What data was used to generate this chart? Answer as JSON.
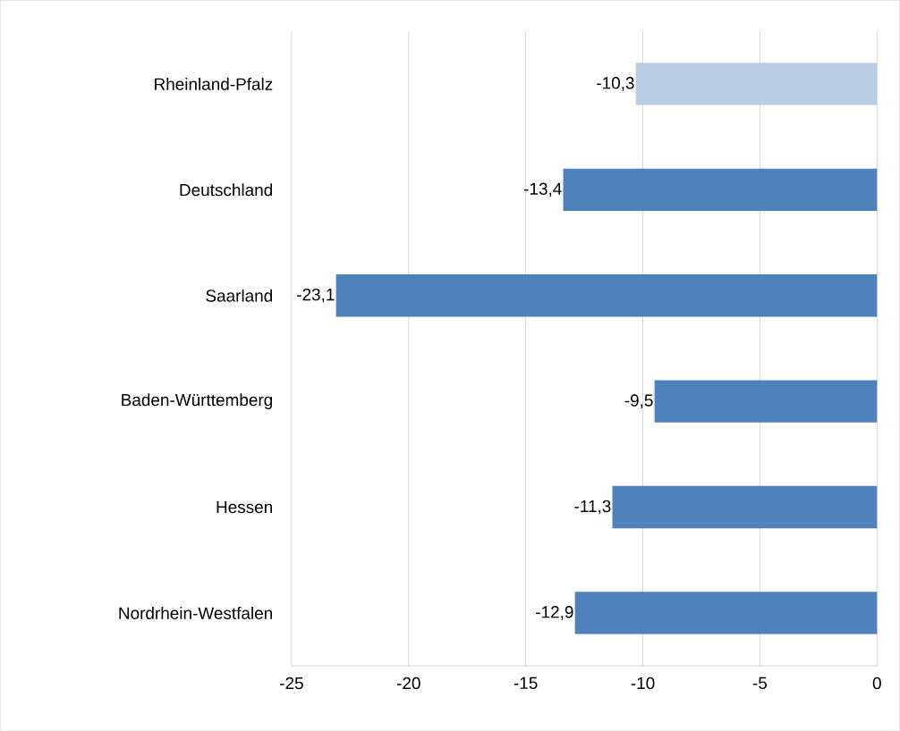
{
  "chart_data": {
    "type": "bar",
    "orientation": "horizontal",
    "categories": [
      "Rheinland-Pfalz",
      "Deutschland",
      "Saarland",
      "Baden-Württemberg",
      "Hessen",
      "Nordrhein-Westfalen"
    ],
    "values": [
      -10.3,
      -13.4,
      -23.1,
      -9.5,
      -11.3,
      -12.9
    ],
    "colors": [
      "#b9cde5",
      "#4f81bd",
      "#4f81bd",
      "#4f81bd",
      "#4f81bd",
      "#4f81bd"
    ],
    "value_labels": [
      "-10,3",
      "-13,4",
      "-23,1",
      "-9,5",
      "-11,3",
      "-12,9"
    ],
    "xlim": [
      -25,
      0
    ],
    "xticks": [
      -25,
      -20,
      -15,
      -10,
      -5,
      0
    ],
    "grid": "x"
  }
}
